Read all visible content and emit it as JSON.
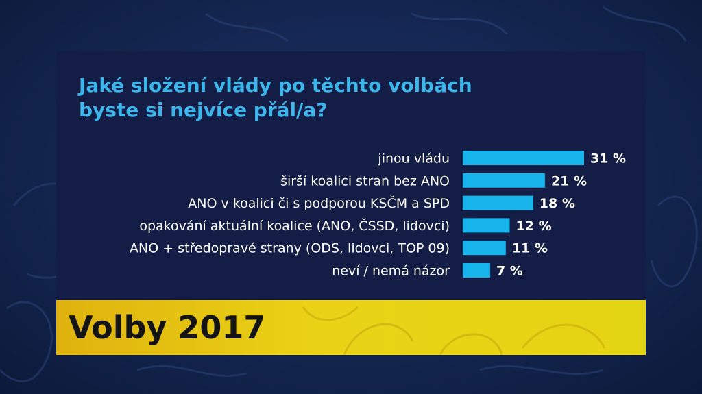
{
  "title_lines": [
    "Jaké složení vlády po těchto volbách",
    "byste si nejvíce přál/a?"
  ],
  "banner": "Volby 2017",
  "colors": {
    "bar": "#17b5ec",
    "title": "#3db6ec",
    "panel": "#131d45",
    "banner": "#e8cf15"
  },
  "chart_data": {
    "type": "bar",
    "orientation": "horizontal",
    "title": "Jaké složení vlády po těchto volbách byste si nejvíce přál/a?",
    "categories": [
      "jinou vládu",
      "širší koalici stran bez ANO",
      "ANO v koalici či s podporou KSČM a SPD",
      "opakování aktuální koalice (ANO, ČSSD, lidovci)",
      "ANO + středopravé strany (ODS, lidovci, TOP 09)",
      "neví / nemá názor"
    ],
    "values": [
      31,
      21,
      18,
      12,
      11,
      7
    ],
    "value_labels": [
      "31 %",
      "21 %",
      "18 %",
      "12 %",
      "11 %",
      "7 %"
    ],
    "unit": "%",
    "xlim": [
      0,
      31
    ]
  }
}
